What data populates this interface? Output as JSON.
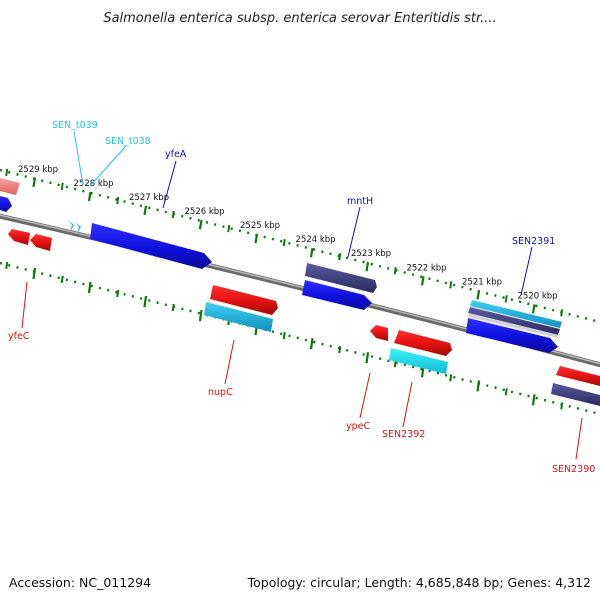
{
  "title": "Salmonella enterica subsp. enterica serovar Enteritidis str....",
  "footer": {
    "accession": "Accession: NC_011294",
    "topology": "Topology: circular; Length: 4,685,848 bp; Genes: 4,312"
  },
  "colors": {
    "plus_strand_cds": "#1010dd",
    "plus_strand_dark": "#3a3a7a",
    "minus_strand_cds": "#e01010",
    "rna": "#20c8e0",
    "cyan_gene": "#10e8f0",
    "backbone": "#8a8a8a",
    "tick": "#0a7a0a"
  },
  "ticks": [
    "2529 kbp",
    "2528 kbp",
    "2527 kbp",
    "2526 kbp",
    "2525 kbp",
    "2524 kbp",
    "2523 kbp",
    "2522 kbp",
    "2521 kbp",
    "2520 kbp"
  ],
  "gene_labels": {
    "sen_t039": "SEN_t039",
    "sen_t038": "SEN_t038",
    "yfea": "yfeA",
    "mnth": "mntH",
    "sen2391": "SEN2391",
    "yfec": "yfeC",
    "nupc": "nupC",
    "ypec": "ypeC",
    "sen2392": "SEN2392",
    "sen2390": "SEN2390"
  }
}
